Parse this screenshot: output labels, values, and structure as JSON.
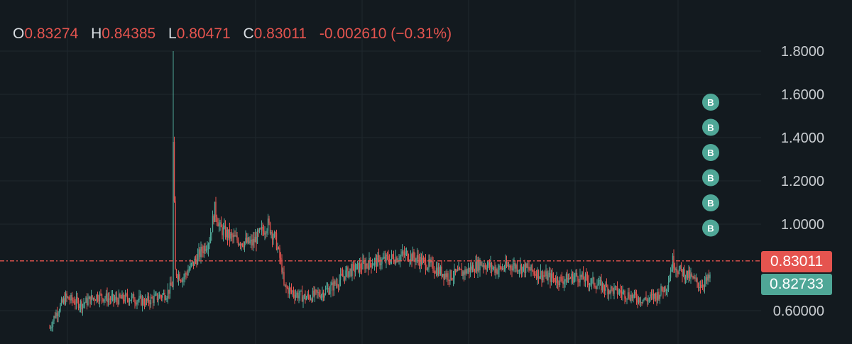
{
  "legend": {
    "o_key": "O",
    "o_val": "0.83274",
    "h_key": "H",
    "h_val": "0.84385",
    "l_key": "L",
    "l_val": "0.80471",
    "c_key": "C",
    "c_val": "0.83011",
    "change": "-0.002610 (−0.31%)"
  },
  "colors": {
    "background": "#131a1f",
    "up": "#4fa797",
    "down": "#e5544f",
    "grid": "#1f282e",
    "marker": "#4fa797"
  },
  "tags": {
    "last_price": "0.83011",
    "other_price": "0.82733"
  },
  "markers": {
    "label": "B",
    "count": 6
  },
  "chart_data": {
    "type": "candlestick",
    "ylim": [
      0.55,
      1.9
    ],
    "y_ticks": [
      "1.8000",
      "1.6000",
      "1.4000",
      "1.2000",
      "1.0000",
      "0.60000"
    ],
    "y_tick_values": [
      1.8,
      1.6,
      1.4,
      1.2,
      1.0,
      0.6
    ],
    "last_price": 0.83011,
    "other_price": 0.82733,
    "ohlc_latest": {
      "open": 0.83274,
      "high": 0.84385,
      "low": 0.80471,
      "close": 0.83011
    },
    "series_path": [
      [
        0,
        0.52
      ],
      [
        5,
        0.58
      ],
      [
        15,
        0.66
      ],
      [
        30,
        0.63
      ],
      [
        45,
        0.67
      ],
      [
        60,
        0.65
      ],
      [
        75,
        0.66
      ],
      [
        90,
        0.64
      ],
      [
        100,
        0.66
      ],
      [
        110,
        0.68
      ],
      [
        115,
        0.72
      ],
      [
        116,
        1.37
      ],
      [
        118,
        0.78
      ],
      [
        125,
        0.75
      ],
      [
        135,
        0.82
      ],
      [
        150,
        0.93
      ],
      [
        155,
        1.07
      ],
      [
        160,
        0.98
      ],
      [
        170,
        0.94
      ],
      [
        180,
        0.92
      ],
      [
        190,
        0.91
      ],
      [
        198,
        0.96
      ],
      [
        205,
        1.0
      ],
      [
        212,
        0.93
      ],
      [
        218,
        0.8
      ],
      [
        220,
        0.71
      ],
      [
        230,
        0.68
      ],
      [
        240,
        0.66
      ],
      [
        255,
        0.68
      ],
      [
        265,
        0.71
      ],
      [
        280,
        0.78
      ],
      [
        300,
        0.82
      ],
      [
        320,
        0.84
      ],
      [
        335,
        0.86
      ],
      [
        345,
        0.84
      ],
      [
        360,
        0.8
      ],
      [
        375,
        0.76
      ],
      [
        390,
        0.78
      ],
      [
        405,
        0.82
      ],
      [
        420,
        0.79
      ],
      [
        435,
        0.81
      ],
      [
        450,
        0.79
      ],
      [
        465,
        0.76
      ],
      [
        480,
        0.74
      ],
      [
        495,
        0.76
      ],
      [
        510,
        0.73
      ],
      [
        525,
        0.7
      ],
      [
        540,
        0.68
      ],
      [
        550,
        0.66
      ],
      [
        560,
        0.65
      ],
      [
        570,
        0.67
      ],
      [
        580,
        0.72
      ],
      [
        585,
        0.83
      ],
      [
        590,
        0.79
      ],
      [
        600,
        0.76
      ],
      [
        610,
        0.72
      ],
      [
        618,
        0.74
      ],
      [
        625,
        0.8
      ],
      [
        628,
        0.83
      ]
    ],
    "spike": {
      "x": 116,
      "high": 1.8
    }
  }
}
